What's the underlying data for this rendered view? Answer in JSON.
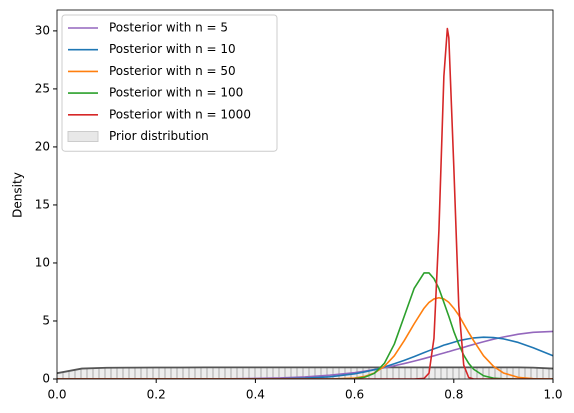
{
  "chart_data": {
    "type": "line",
    "ylabel": "Density",
    "x": [
      0,
      0.05,
      0.1,
      0.15,
      0.2,
      0.25,
      0.3,
      0.35,
      0.4,
      0.45,
      0.5,
      0.55,
      0.6,
      0.62,
      0.64,
      0.66,
      0.68,
      0.7,
      0.72,
      0.74,
      0.75,
      0.76,
      0.77,
      0.78,
      0.787,
      0.79,
      0.8,
      0.81,
      0.82,
      0.83,
      0.84,
      0.86,
      0.88,
      0.9,
      0.93,
      0.96,
      1.0
    ],
    "series": [
      {
        "name": "Posterior with n = 5",
        "color": "#9467bd",
        "values": [
          0,
          0,
          0,
          0,
          0,
          0,
          0.01,
          0.02,
          0.05,
          0.09,
          0.18,
          0.33,
          0.55,
          0.68,
          0.81,
          0.97,
          1.14,
          1.33,
          1.54,
          1.76,
          1.88,
          2.0,
          2.12,
          2.24,
          2.33,
          2.36,
          2.49,
          2.61,
          2.73,
          2.86,
          2.98,
          3.21,
          3.43,
          3.62,
          3.86,
          4.02,
          4.1
        ]
      },
      {
        "name": "Posterior with n = 10",
        "color": "#1f77b4",
        "values": [
          0,
          0,
          0,
          0,
          0,
          0,
          0,
          0,
          0.01,
          0.02,
          0.07,
          0.19,
          0.45,
          0.61,
          0.8,
          1.03,
          1.31,
          1.61,
          1.93,
          2.27,
          2.44,
          2.6,
          2.75,
          2.92,
          3.0,
          3.04,
          3.17,
          3.3,
          3.39,
          3.47,
          3.54,
          3.6,
          3.57,
          3.46,
          3.15,
          2.69,
          2.0
        ]
      },
      {
        "name": "Posterior with n = 50",
        "color": "#ff7f0e",
        "values": [
          0,
          0,
          0,
          0,
          0,
          0,
          0,
          0,
          0,
          0,
          0,
          0,
          0.08,
          0.22,
          0.52,
          1.09,
          2.0,
          3.3,
          4.75,
          6.1,
          6.6,
          6.9,
          7.0,
          6.9,
          6.7,
          6.6,
          6.1,
          5.5,
          4.75,
          4.0,
          3.3,
          2.0,
          1.09,
          0.52,
          0.14,
          0.03,
          0
        ]
      },
      {
        "name": "Posterior with n = 100",
        "color": "#2ca02c",
        "values": [
          0,
          0,
          0,
          0,
          0,
          0,
          0,
          0,
          0,
          0,
          0,
          0,
          0.03,
          0.15,
          0.49,
          1.35,
          3.0,
          5.4,
          7.8,
          9.14,
          9.14,
          8.65,
          7.8,
          6.6,
          5.75,
          5.4,
          4.1,
          3.0,
          2.05,
          1.35,
          0.84,
          0.28,
          0.07,
          0.02,
          0,
          0,
          0
        ]
      },
      {
        "name": "Posterior with n = 1000",
        "color": "#d62728",
        "values": [
          0,
          0,
          0,
          0,
          0,
          0,
          0,
          0,
          0,
          0,
          0,
          0,
          0,
          0,
          0,
          0,
          0,
          0,
          0,
          0.05,
          0.5,
          3.5,
          12.8,
          26.1,
          30.2,
          29.4,
          18.3,
          6.3,
          1.2,
          0.13,
          0,
          0,
          0,
          0,
          0,
          0,
          0
        ]
      }
    ],
    "prior": {
      "name": "Prior distribution",
      "color": "#555555",
      "values": [
        0.5,
        0.9,
        0.97,
        0.98,
        0.99,
        0.99,
        1,
        1,
        1,
        1,
        1,
        1,
        1,
        1,
        1,
        1,
        1,
        1,
        1,
        1,
        1,
        1,
        1,
        1,
        1,
        1,
        1,
        1,
        1,
        1,
        1,
        1,
        1,
        1,
        1,
        0.98,
        0.9
      ]
    },
    "xlim": [
      0,
      1
    ],
    "ylim": [
      0,
      31.8
    ],
    "xticks": [
      {
        "value": 0,
        "label": "0.0"
      },
      0.2,
      0.4,
      0.6,
      0.8,
      {
        "value": 1,
        "label": "1.0"
      }
    ],
    "yticks": [
      0,
      5,
      10,
      15,
      20,
      25,
      30
    ],
    "legend": "upper-left"
  }
}
